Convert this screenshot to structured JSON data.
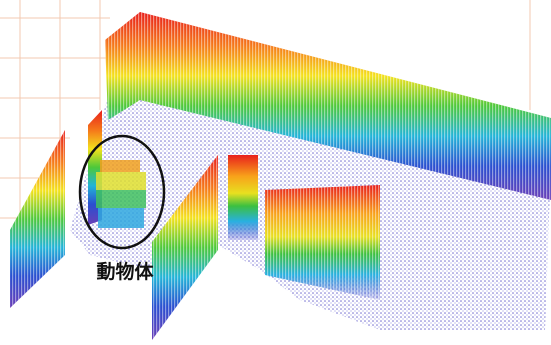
{
  "annotation": {
    "label": "動物体"
  }
}
